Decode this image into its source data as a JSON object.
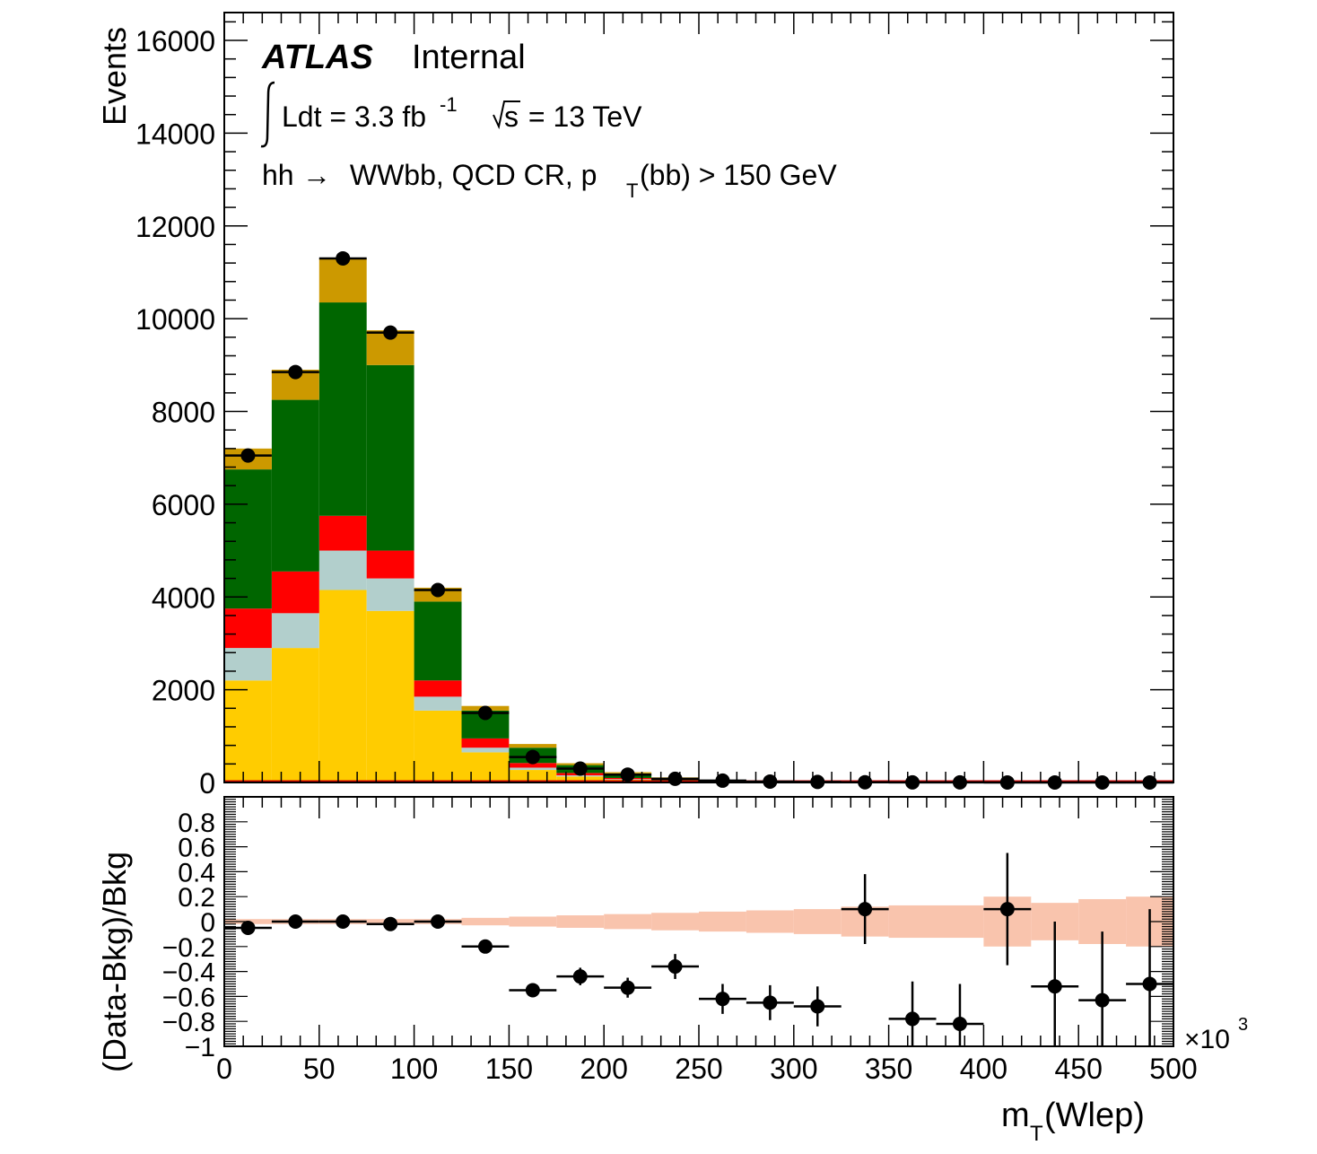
{
  "chart_data": {
    "type": "bar",
    "stacked": true,
    "x_bin_edges": [
      0,
      25,
      50,
      75,
      100,
      125,
      150,
      175,
      200,
      225,
      250,
      275,
      300,
      325,
      350,
      375,
      400,
      425,
      450,
      475,
      500
    ],
    "x_multiplier_label": "×10",
    "x_multiplier_exponent": "3",
    "xlabel_main": "m",
    "xlabel_sub": "T",
    "xlabel_rest": "(Wlep)",
    "xlim": [
      0,
      500
    ],
    "x_ticks": [
      "0",
      "50",
      "100",
      "150",
      "200",
      "250",
      "300",
      "350",
      "400",
      "450",
      "500"
    ],
    "main_panel": {
      "ylabel": "Events",
      "ylim": [
        0,
        16600
      ],
      "y_ticks": [
        "0",
        "2000",
        "4000",
        "6000",
        "8000",
        "10000",
        "12000",
        "14000",
        "16000"
      ],
      "series": [
        {
          "color": "#ffcc00",
          "values": [
            2200,
            2900,
            4150,
            3700,
            1550,
            650,
            270,
            130,
            60,
            30,
            14,
            7,
            4,
            2,
            1,
            1,
            0,
            0,
            0,
            0
          ]
        },
        {
          "color": "#b2cfcc",
          "values": [
            700,
            750,
            850,
            700,
            300,
            100,
            50,
            25,
            12,
            6,
            3,
            2,
            1,
            1,
            0,
            0,
            0,
            0,
            0,
            0
          ]
        },
        {
          "color": "#ff0000",
          "values": [
            850,
            900,
            750,
            600,
            350,
            200,
            100,
            50,
            25,
            12,
            6,
            3,
            2,
            1,
            1,
            0,
            0,
            0,
            0,
            0
          ]
        },
        {
          "color": "#006600",
          "values": [
            3000,
            3700,
            4600,
            4000,
            1700,
            600,
            330,
            170,
            100,
            50,
            25,
            15,
            8,
            4,
            2,
            1,
            1,
            0,
            0,
            0
          ]
        },
        {
          "color": "#cc9900",
          "values": [
            450,
            650,
            950,
            750,
            300,
            100,
            80,
            40,
            25,
            12,
            7,
            3,
            2,
            1,
            1,
            1,
            0,
            0,
            0,
            0
          ]
        }
      ],
      "data_points": [
        7050,
        8850,
        11300,
        9700,
        4150,
        1500,
        550,
        300,
        170,
        80,
        40,
        20,
        12,
        6,
        3,
        2,
        1,
        1,
        1,
        1
      ],
      "labels": {
        "atlas": "ATLAS",
        "internal": "Internal",
        "lumi_prefix": "Ldt = 3.3 fb",
        "lumi_exponent": "-1",
        "energy_root": "s",
        "energy_rest": " = 13 TeV",
        "channel_prefix": "hh",
        "channel_arrow": "→",
        "channel_mid": " WWbb, QCD CR, p",
        "channel_sub": "T",
        "channel_rest": "(bb) > 150 GeV"
      }
    },
    "ratio_panel": {
      "ylabel": "(Data-Bkg)/Bkg",
      "ylim": [
        -1,
        1
      ],
      "y_ticks": [
        "−1",
        "−0.8",
        "−0.6",
        "−0.4",
        "−0.2",
        "0",
        "0.2",
        "0.4",
        "0.6",
        "0.8"
      ],
      "y_tick_values": [
        -1,
        -0.8,
        -0.6,
        -0.4,
        -0.2,
        0,
        0.2,
        0.4,
        0.6,
        0.8
      ],
      "band_color": "#f9c4ad",
      "band_halfwidth": [
        0.02,
        0.02,
        0.02,
        0.02,
        0.02,
        0.03,
        0.04,
        0.05,
        0.06,
        0.07,
        0.08,
        0.09,
        0.1,
        0.12,
        0.13,
        0.13,
        0.2,
        0.15,
        0.18,
        0.2
      ],
      "values": [
        -0.05,
        0.0,
        0.0,
        -0.02,
        0.0,
        -0.2,
        -0.55,
        -0.44,
        -0.53,
        -0.36,
        -0.62,
        -0.65,
        -0.68,
        0.1,
        -0.78,
        -0.82,
        0.1,
        -0.52,
        -0.63,
        -0.5
      ],
      "errors": [
        0.02,
        0.01,
        0.01,
        0.01,
        0.02,
        0.03,
        0.05,
        0.07,
        0.08,
        0.1,
        0.12,
        0.14,
        0.16,
        0.28,
        0.3,
        0.32,
        0.45,
        0.52,
        0.55,
        0.6
      ]
    }
  }
}
